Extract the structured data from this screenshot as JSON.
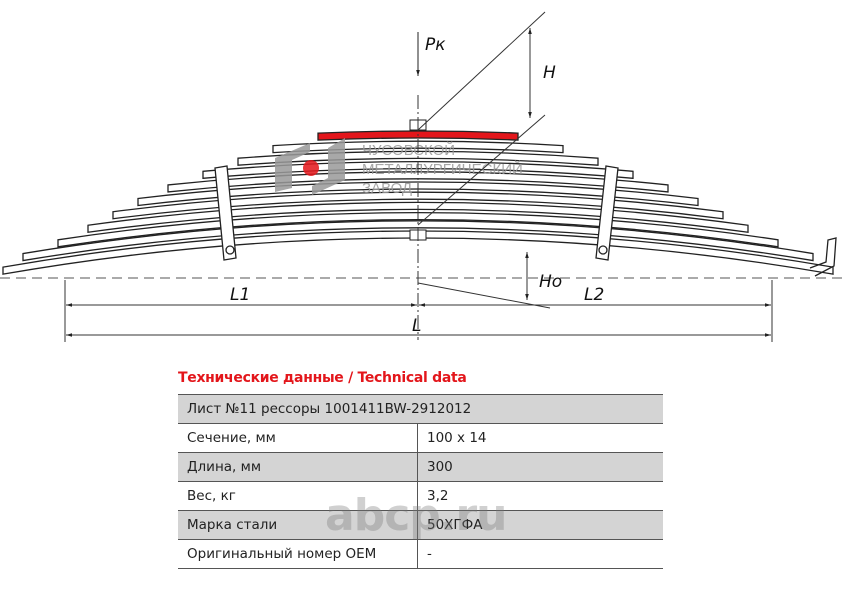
{
  "drawing": {
    "labels": {
      "load": "Pк",
      "height": "H",
      "height_zero": "Ho",
      "length_left": "L1",
      "length_right": "L2",
      "length_total": "L"
    },
    "highlight_color": "#e3161b",
    "logo_lines": [
      "ЧУСОВСКОЙ",
      "МЕТАЛЛУРГИЧЕСКИЙ",
      "ЗАВОД"
    ]
  },
  "table": {
    "title": "Технические данные / Technical data",
    "header": "Лист №11 рессоры 1001411BW-2912012",
    "rows": [
      {
        "label": "Сечение, мм",
        "value": "100 x 14"
      },
      {
        "label": "Длина, мм",
        "value": "300"
      },
      {
        "label": "Вес, кг",
        "value": "3,2"
      },
      {
        "label": "Марка стали",
        "value": "50ХГФА"
      },
      {
        "label": "Оригинальный номер OEM",
        "value": "-"
      }
    ]
  },
  "watermark": "abcp.ru"
}
